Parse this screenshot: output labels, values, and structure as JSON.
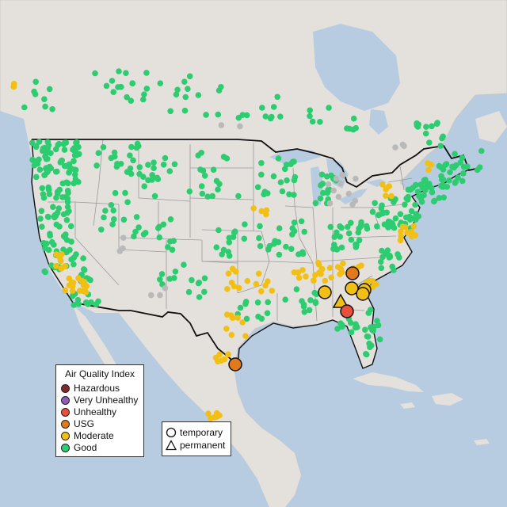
{
  "legend": {
    "title": "Air Quality Index",
    "categories": [
      {
        "label": "Hazardous",
        "color": "#7e2a2a"
      },
      {
        "label": "Very Unhealthy",
        "color": "#8f5cb8"
      },
      {
        "label": "Unhealthy",
        "color": "#e84f3c"
      },
      {
        "label": "USG",
        "color": "#e27a1c"
      },
      {
        "label": "Moderate",
        "color": "#f2c014"
      },
      {
        "label": "Good",
        "color": "#2ecc71"
      }
    ]
  },
  "type_legend": {
    "temporary_label": "temporary",
    "permanent_label": "permanent"
  },
  "colors": {
    "ocean": "#b7cce0",
    "land": "#e4e1dd",
    "border": "#111111",
    "state_line": "#9a9a9a",
    "inactive_station": "#b9b9b9"
  }
}
